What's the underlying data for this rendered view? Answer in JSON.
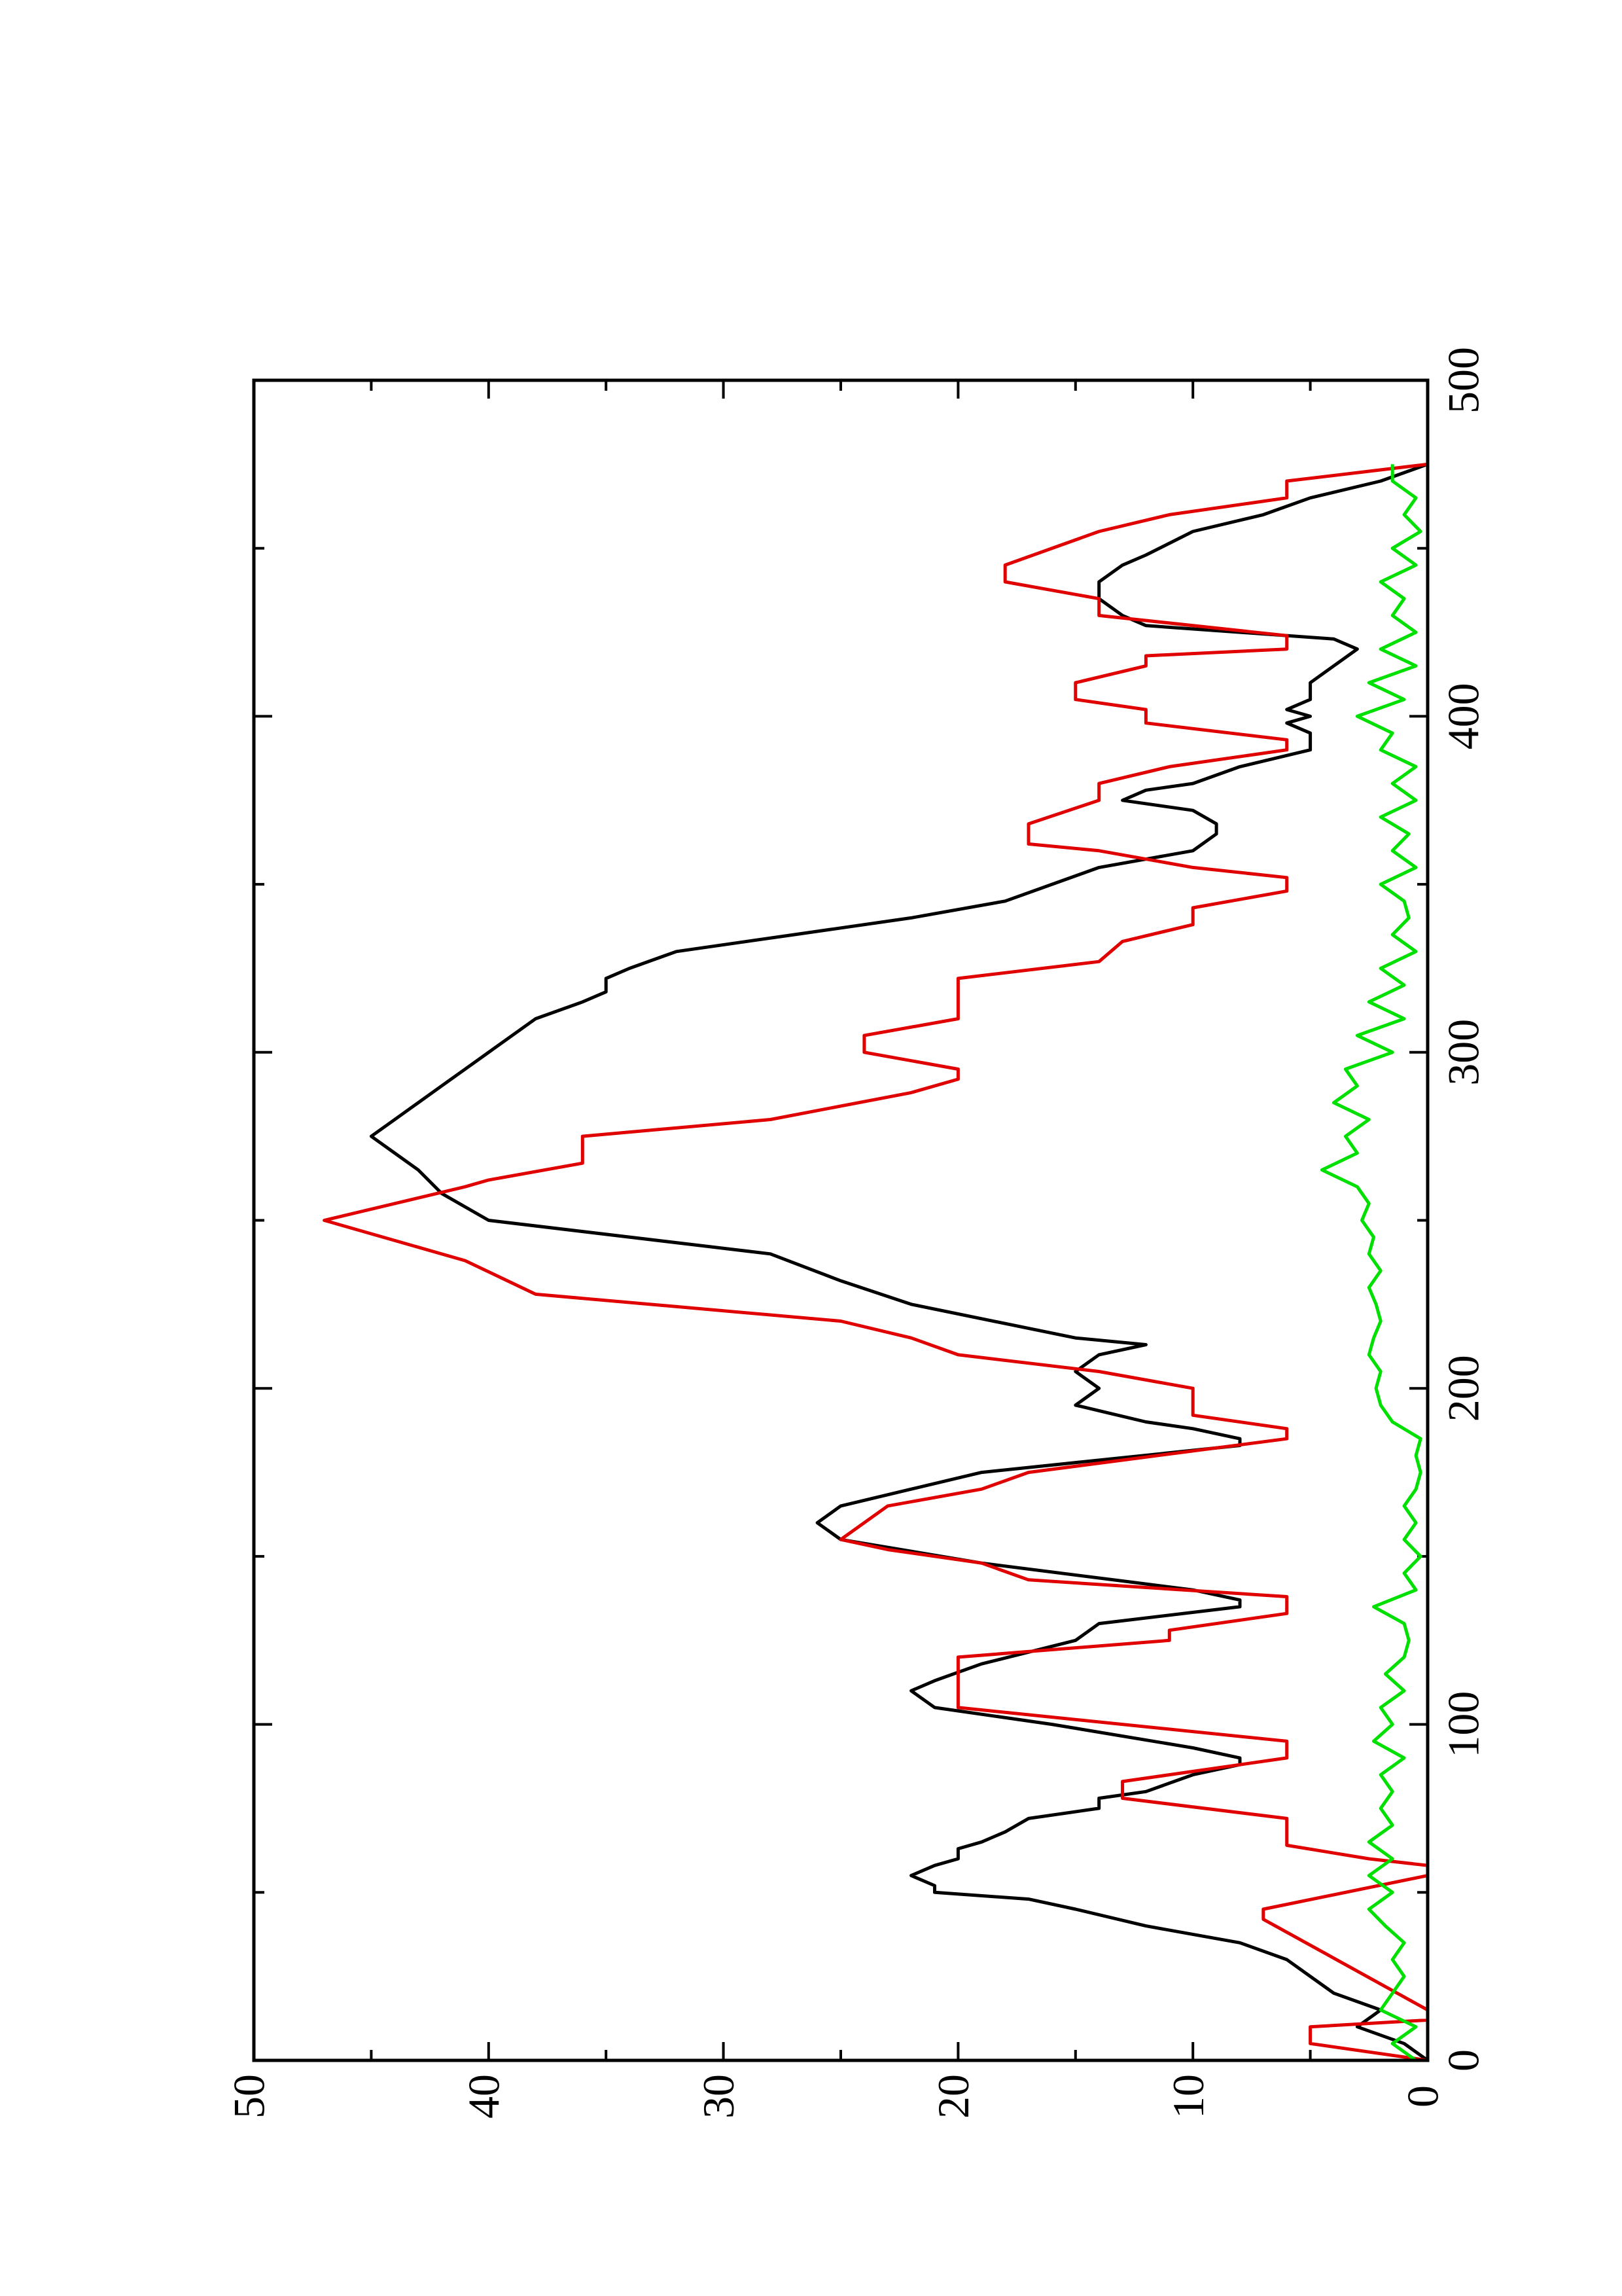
{
  "chart_data": {
    "type": "line",
    "orientation": "rotated",
    "xlim": [
      0,
      500
    ],
    "xticks": [
      0,
      100,
      200,
      300,
      400,
      500
    ],
    "ylim": [
      0,
      50
    ],
    "yticks": [
      0,
      10,
      20,
      30,
      40,
      50
    ],
    "series": [
      {
        "color": "#000000",
        "x": [
          0,
          5,
          10,
          15,
          20,
          25,
          30,
          35,
          40,
          45,
          48,
          50,
          52,
          55,
          58,
          60,
          63,
          65,
          68,
          72,
          75,
          78,
          80,
          85,
          88,
          90,
          93,
          100,
          105,
          110,
          113,
          118,
          125,
          130,
          135,
          137,
          140,
          148,
          155,
          160,
          165,
          170,
          175,
          183,
          185,
          188,
          190,
          195,
          200,
          205,
          210,
          213,
          215,
          225,
          232,
          240,
          250,
          258,
          265,
          270,
          275,
          280,
          285,
          290,
          295,
          300,
          305,
          310,
          315,
          318,
          322,
          325,
          330,
          335,
          340,
          345,
          350,
          355,
          360,
          365,
          368,
          372,
          375,
          378,
          380,
          385,
          390,
          393,
          395,
          398,
          400,
          402,
          405,
          410,
          415,
          420,
          423,
          427,
          430,
          435,
          440,
          445,
          448,
          455,
          460,
          465,
          470,
          475
        ],
        "values": [
          0,
          1,
          3,
          2,
          4,
          5,
          6,
          8,
          12,
          15,
          17,
          21,
          21,
          22,
          21,
          20,
          20,
          19,
          18,
          17,
          14,
          14,
          12,
          10,
          8,
          8,
          10,
          16,
          21,
          22,
          21,
          19,
          15,
          14,
          8,
          8,
          10,
          19,
          25,
          26,
          25,
          22,
          19,
          8,
          8,
          10,
          12,
          15,
          14,
          15,
          14,
          12,
          15,
          22,
          25,
          28,
          40,
          42,
          43,
          44,
          45,
          44,
          43,
          42,
          41,
          40,
          39,
          38,
          36,
          35,
          35,
          34,
          32,
          27,
          22,
          18,
          16,
          14,
          10,
          9,
          9,
          10,
          13,
          12,
          10,
          8,
          5,
          5,
          5,
          6,
          5,
          6,
          5,
          5,
          4,
          3,
          4,
          12,
          13,
          14,
          14,
          13,
          12,
          10,
          7,
          5,
          2,
          0
        ]
      },
      {
        "color": "#e00000",
        "x": [
          0,
          5,
          10,
          12,
          15,
          42,
          45,
          55,
          58,
          60,
          64,
          72,
          78,
          83,
          90,
          95,
          105,
          120,
          125,
          128,
          133,
          138,
          143,
          148,
          152,
          155,
          165,
          170,
          175,
          185,
          188,
          192,
          200,
          205,
          210,
          215,
          220,
          228,
          238,
          250,
          260,
          262,
          267,
          275,
          280,
          288,
          292,
          295,
          300,
          305,
          310,
          322,
          327,
          333,
          338,
          343,
          348,
          352,
          355,
          360,
          362,
          368,
          375,
          380,
          385,
          390,
          393,
          398,
          402,
          405,
          410,
          415,
          418,
          420,
          424,
          430,
          435,
          440,
          445,
          455,
          460,
          465,
          470,
          475
        ],
        "values": [
          0,
          5,
          5,
          0,
          0,
          7,
          7,
          0,
          0,
          2.5,
          6,
          6,
          13,
          13,
          6,
          6,
          20,
          20,
          11,
          11,
          6,
          6,
          17,
          19,
          23,
          25,
          23,
          19,
          17,
          6,
          6,
          10,
          10,
          14,
          20,
          22,
          25,
          38,
          41,
          47,
          41,
          40,
          36,
          36,
          28,
          22,
          20,
          20,
          24,
          24,
          20,
          20,
          14,
          13,
          10,
          10,
          6,
          6,
          10,
          14,
          17,
          17,
          14,
          14,
          11,
          6,
          6,
          12,
          12,
          15,
          15,
          12,
          12,
          6,
          6,
          14,
          14,
          18,
          18,
          14,
          11,
          6,
          6,
          0
        ]
      },
      {
        "color": "#00e000",
        "x": [
          0,
          5,
          10,
          15,
          20,
          25,
          30,
          35,
          40,
          45,
          50,
          55,
          60,
          65,
          70,
          75,
          80,
          85,
          90,
          95,
          100,
          105,
          110,
          115,
          120,
          125,
          130,
          135,
          140,
          145,
          150,
          155,
          160,
          165,
          170,
          175,
          180,
          185,
          190,
          195,
          200,
          205,
          210,
          215,
          220,
          225,
          230,
          235,
          240,
          245,
          250,
          255,
          260,
          265,
          270,
          275,
          280,
          285,
          290,
          295,
          300,
          305,
          310,
          315,
          320,
          325,
          330,
          335,
          340,
          345,
          350,
          355,
          360,
          365,
          370,
          375,
          380,
          385,
          390,
          395,
          400,
          405,
          410,
          415,
          420,
          425,
          430,
          435,
          440,
          445,
          450,
          455,
          460,
          465,
          470,
          475
        ],
        "values": [
          0.5,
          1.5,
          0.5,
          2,
          1.5,
          1,
          1.5,
          1,
          1.8,
          2.5,
          1.5,
          2.5,
          1.5,
          2.5,
          1.5,
          2,
          1.5,
          2,
          1,
          2.3,
          1.5,
          2,
          1,
          1.8,
          1,
          0.8,
          1,
          2.3,
          0.5,
          1,
          0.3,
          1,
          0.5,
          1,
          0.5,
          0.3,
          0.5,
          0.3,
          1.5,
          2,
          2.2,
          2,
          2.5,
          2.3,
          2,
          2.2,
          2.5,
          2,
          2.5,
          2.3,
          2.8,
          2.5,
          3,
          4.5,
          3,
          3.5,
          2.5,
          4,
          3,
          3.5,
          1.5,
          3,
          1,
          2.5,
          1,
          2,
          0.5,
          1.5,
          0.8,
          1,
          2,
          0.5,
          1.5,
          0.8,
          2,
          0.5,
          1.5,
          0.5,
          2,
          1.5,
          3,
          1,
          2.5,
          0.5,
          2,
          0.5,
          1.5,
          1,
          2,
          0.5,
          1.5,
          0.3,
          1,
          0.5,
          1.5,
          1.5
        ]
      }
    ]
  }
}
